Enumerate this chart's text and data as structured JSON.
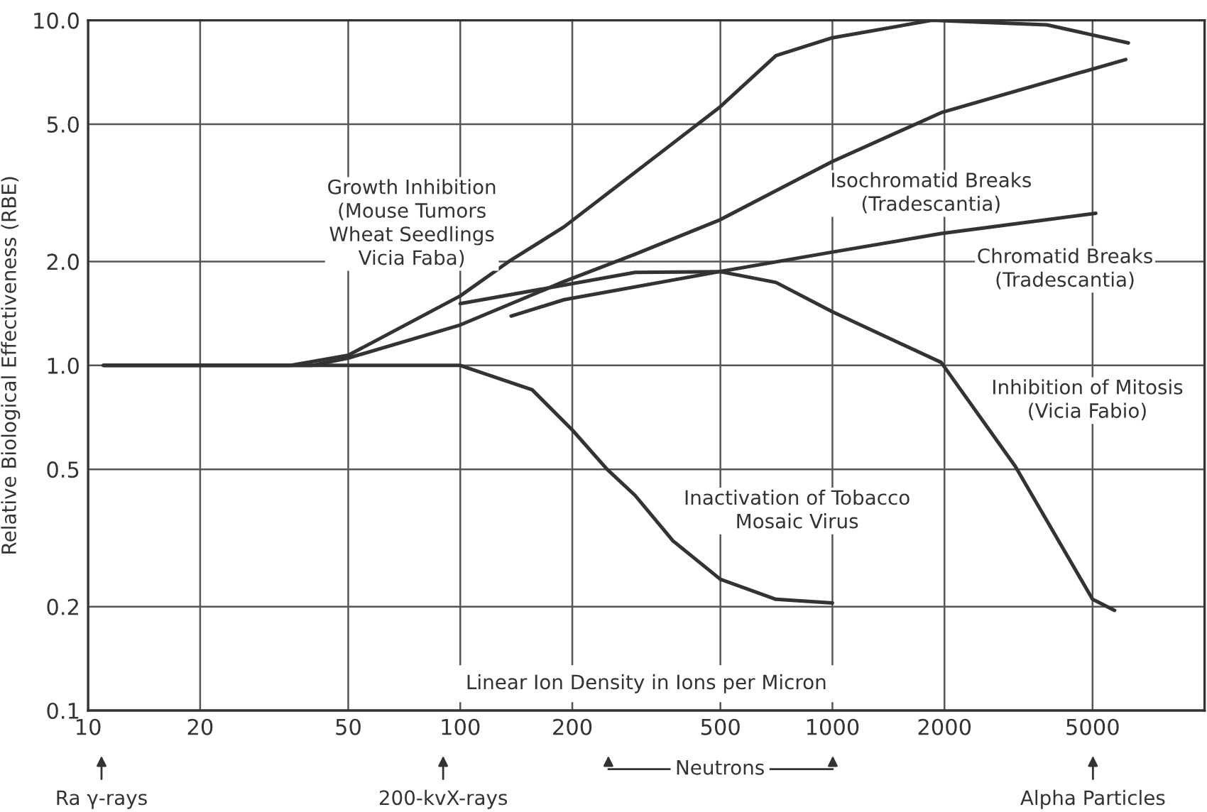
{
  "chart_data": {
    "type": "line",
    "xlabel": "Linear Ion Density in Ions per Micron",
    "ylabel": "Relative Biological Effectiveness (RBE)",
    "log": "xy",
    "grid": true,
    "legend": false,
    "marker": "none",
    "line_style": "solid",
    "xlim": [
      10,
      10000
    ],
    "xticks": [
      10,
      20,
      50,
      100,
      200,
      500,
      1000,
      2000,
      5000
    ],
    "ylim": [
      0.1,
      10
    ],
    "yticks": [
      {
        "value": 0.1,
        "label": "0.1"
      },
      {
        "value": 0.2,
        "label": "0.2"
      },
      {
        "value": 0.5,
        "label": "0.5"
      },
      {
        "value": 1,
        "label": "1.0"
      },
      {
        "value": 2,
        "label": "2.0"
      },
      {
        "value": 5,
        "label": "5.0"
      },
      {
        "value": 10,
        "label": "10.0"
      }
    ],
    "series": [
      {
        "name": "Growth Inhibition\n(Mouse Tumors\nWheat Seedlings\nVicia Faba)",
        "color": "#333333",
        "x": [
          11,
          35,
          50,
          100,
          135,
          190,
          342,
          498,
          705,
          1000,
          1850,
          3770,
          6240
        ],
        "values": [
          1.0,
          1.0,
          1.07,
          1.59,
          2.0,
          2.52,
          4.1,
          5.6,
          7.9,
          8.9,
          10.0,
          9.7,
          8.6
        ]
      },
      {
        "name": "Isochromatid Breaks\n(Tradescantia)",
        "color": "#333333",
        "x": [
          11,
          40,
          50,
          100,
          190,
          295,
          498,
          1000,
          1960,
          6140
        ],
        "values": [
          1.0,
          1.0,
          1.05,
          1.31,
          1.75,
          2.1,
          2.64,
          3.9,
          5.4,
          7.7
        ]
      },
      {
        "name": "Chromatid Breaks\n(Tradescantia)",
        "color": "#333333",
        "x": [
          137,
          190,
          498,
          1000,
          1960,
          5100
        ],
        "values": [
          1.39,
          1.55,
          1.87,
          2.13,
          2.41,
          2.76
        ]
      },
      {
        "name": "Inhibition of Mitosis\n(Vicia Fabio)",
        "color": "#333333",
        "x": [
          100,
          295,
          498,
          705,
          1000,
          1960,
          3100,
          5000,
          5730
        ],
        "values": [
          1.51,
          1.86,
          1.87,
          1.74,
          1.43,
          1.02,
          0.51,
          0.21,
          0.195
        ]
      },
      {
        "name": "Inactivation of Tobacco\nMosaic Virus",
        "color": "#333333",
        "x": [
          11,
          100,
          156,
          200,
          248,
          295,
          373,
          500,
          705,
          1000
        ],
        "values": [
          1.0,
          1.0,
          0.85,
          0.65,
          0.5,
          0.42,
          0.31,
          0.24,
          0.21,
          0.205
        ]
      }
    ],
    "annotations": [
      "Ra γ-rays",
      "200-kvX-rays",
      "Neutrons",
      "Alpha Particles"
    ]
  }
}
